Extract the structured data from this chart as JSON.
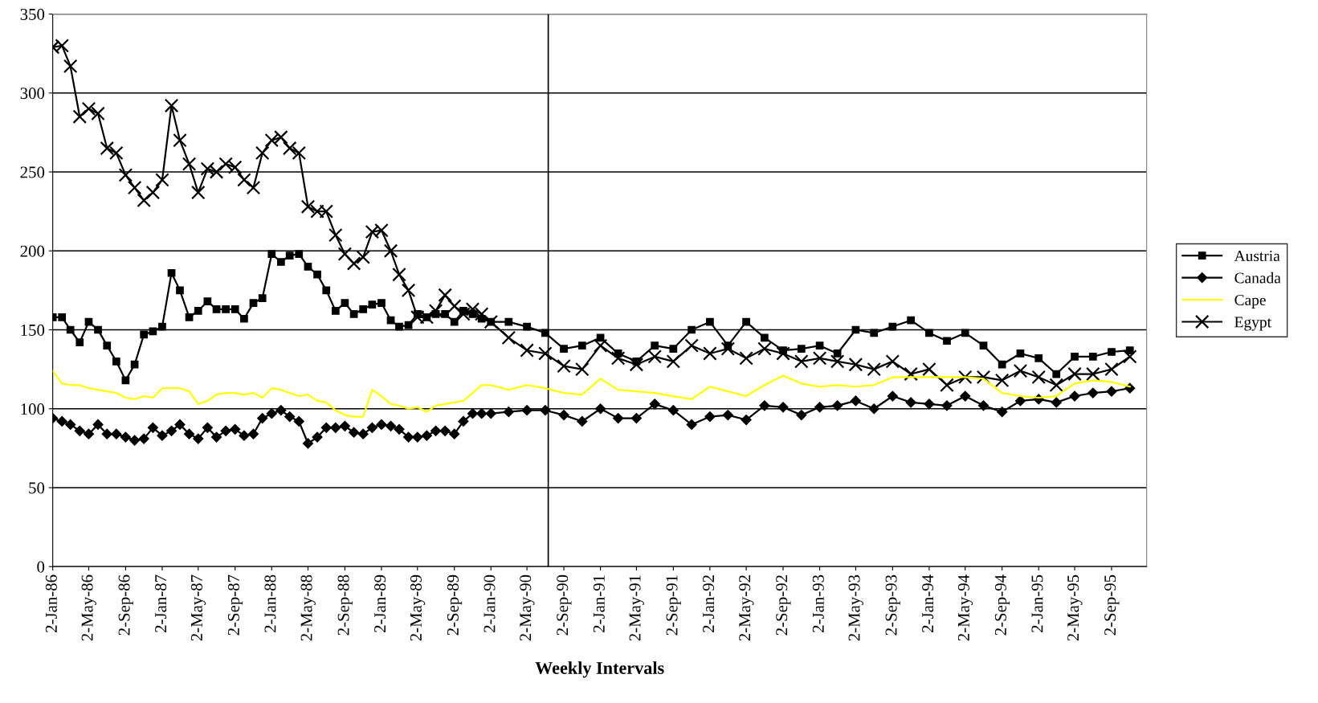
{
  "chart_data": {
    "type": "line",
    "xlabel": "Weekly Intervals",
    "x": [
      "1986-01-02",
      "1986-02-02",
      "1986-03-02",
      "1986-04-02",
      "1986-05-02",
      "1986-06-02",
      "1986-07-02",
      "1986-08-02",
      "1986-09-02",
      "1986-10-02",
      "1986-11-02",
      "1986-12-02",
      "1987-01-02",
      "1987-02-02",
      "1987-03-02",
      "1987-04-02",
      "1987-05-02",
      "1987-06-02",
      "1987-07-02",
      "1987-08-02",
      "1987-09-02",
      "1987-10-02",
      "1987-11-02",
      "1987-12-02",
      "1988-01-02",
      "1988-02-02",
      "1988-03-02",
      "1988-04-02",
      "1988-05-02",
      "1988-06-02",
      "1988-07-02",
      "1988-08-02",
      "1988-09-02",
      "1988-10-02",
      "1988-11-02",
      "1988-12-02",
      "1989-01-02",
      "1989-02-02",
      "1989-03-02",
      "1989-04-02",
      "1989-05-02",
      "1989-06-02",
      "1989-07-02",
      "1989-08-02",
      "1989-09-02",
      "1989-10-02",
      "1989-11-02",
      "1989-12-02",
      "1990-01-02",
      "1990-03-02",
      "1990-05-02",
      "1990-07-02",
      "1990-09-02",
      "1990-11-02",
      "1991-01-02",
      "1991-03-02",
      "1991-05-02",
      "1991-07-02",
      "1991-09-02",
      "1991-11-02",
      "1992-01-02",
      "1992-03-02",
      "1992-05-02",
      "1992-07-02",
      "1992-09-02",
      "1992-11-02",
      "1993-01-02",
      "1993-03-02",
      "1993-05-02",
      "1993-07-02",
      "1993-09-02",
      "1993-11-02",
      "1994-01-02",
      "1994-03-02",
      "1994-05-02",
      "1994-07-02",
      "1994-09-02",
      "1994-11-02",
      "1995-01-02",
      "1995-03-02",
      "1995-05-02",
      "1995-07-02",
      "1995-09-02",
      "1995-11-02"
    ],
    "series": [
      {
        "name": "Austria",
        "color": "#000000",
        "marker": "square",
        "values": [
          158,
          158,
          150,
          142,
          155,
          150,
          140,
          130,
          118,
          128,
          147,
          149,
          152,
          186,
          175,
          158,
          162,
          168,
          163,
          163,
          163,
          157,
          167,
          170,
          198,
          193,
          197,
          198,
          190,
          185,
          175,
          162,
          167,
          160,
          163,
          166,
          167,
          156,
          152,
          153,
          160,
          158,
          160,
          160,
          155,
          162,
          160,
          157,
          155,
          155,
          152,
          148,
          138,
          140,
          145,
          135,
          130,
          140,
          138,
          150,
          155,
          140,
          155,
          145,
          137,
          138,
          140,
          135,
          150,
          148,
          152,
          156,
          148,
          143,
          148,
          140,
          128,
          135,
          132,
          122,
          133,
          133,
          136,
          137
        ]
      },
      {
        "name": "Canada",
        "color": "#000000",
        "marker": "diamond",
        "values": [
          94,
          92,
          90,
          86,
          84,
          90,
          84,
          84,
          82,
          80,
          81,
          88,
          83,
          86,
          90,
          84,
          81,
          88,
          82,
          86,
          87,
          83,
          84,
          94,
          97,
          99,
          95,
          92,
          78,
          82,
          88,
          88,
          89,
          85,
          84,
          88,
          90,
          89,
          87,
          82,
          82,
          83,
          86,
          86,
          84,
          92,
          97,
          97,
          97,
          98,
          99,
          99,
          96,
          92,
          100,
          94,
          94,
          103,
          99,
          90,
          95,
          96,
          93,
          102,
          101,
          96,
          101,
          102,
          105,
          100,
          108,
          104,
          103,
          102,
          108,
          102,
          98,
          105,
          106,
          104,
          108,
          110,
          111,
          113
        ]
      },
      {
        "name": "Cape",
        "color": "#ffff00",
        "marker": "none",
        "values": [
          124,
          116,
          115,
          115,
          113,
          112,
          111,
          110,
          107,
          106,
          108,
          107,
          113,
          113,
          113,
          111,
          103,
          105,
          109,
          110,
          110,
          109,
          110,
          107,
          113,
          112,
          110,
          108,
          109,
          105,
          104,
          99,
          96,
          95,
          95,
          112,
          108,
          103,
          102,
          100,
          101,
          98,
          102,
          103,
          104,
          105,
          110,
          115,
          115,
          112,
          115,
          113,
          110,
          109,
          119,
          112,
          111,
          110,
          108,
          106,
          114,
          111,
          108,
          115,
          121,
          116,
          114,
          115,
          114,
          115,
          120,
          120,
          120,
          120,
          120,
          119,
          110,
          108,
          107,
          108,
          116,
          118,
          117,
          114
        ]
      },
      {
        "name": "Egypt",
        "color": "#000000",
        "marker": "cross",
        "values": [
          329,
          330,
          317,
          285,
          290,
          287,
          265,
          262,
          248,
          240,
          232,
          237,
          245,
          292,
          270,
          255,
          237,
          252,
          250,
          255,
          253,
          245,
          240,
          262,
          270,
          272,
          265,
          262,
          228,
          225,
          225,
          210,
          198,
          192,
          196,
          212,
          213,
          200,
          185,
          175,
          158,
          158,
          162,
          172,
          165,
          160,
          163,
          160,
          155,
          145,
          137,
          135,
          127,
          125,
          140,
          132,
          128,
          133,
          130,
          140,
          135,
          138,
          132,
          138,
          135,
          130,
          132,
          130,
          128,
          125,
          130,
          122,
          125,
          115,
          120,
          120,
          118,
          124,
          120,
          115,
          122,
          122,
          125,
          133
        ]
      }
    ],
    "xlim": [
      "1986-01-02",
      "1995-12-28"
    ],
    "xticks": [
      {
        "value": "1986-01-02",
        "label": "2-Jan-86"
      },
      {
        "value": "1986-05-02",
        "label": "2-May-86"
      },
      {
        "value": "1986-09-02",
        "label": "2-Sep-86"
      },
      {
        "value": "1987-01-02",
        "label": "2-Jan-87"
      },
      {
        "value": "1987-05-02",
        "label": "2-May-87"
      },
      {
        "value": "1987-09-02",
        "label": "2-Sep-87"
      },
      {
        "value": "1988-01-02",
        "label": "2-Jan-88"
      },
      {
        "value": "1988-05-02",
        "label": "2-May-88"
      },
      {
        "value": "1988-09-02",
        "label": "2-Sep-88"
      },
      {
        "value": "1989-01-02",
        "label": "2-Jan-89"
      },
      {
        "value": "1989-05-02",
        "label": "2-May-89"
      },
      {
        "value": "1989-09-02",
        "label": "2-Sep-89"
      },
      {
        "value": "1990-01-02",
        "label": "2-Jan-90"
      },
      {
        "value": "1990-05-02",
        "label": "2-May-90"
      },
      {
        "value": "1990-09-02",
        "label": "2-Sep-90"
      },
      {
        "value": "1991-01-02",
        "label": "2-Jan-91"
      },
      {
        "value": "1991-05-02",
        "label": "2-May-91"
      },
      {
        "value": "1991-09-02",
        "label": "2-Sep-91"
      },
      {
        "value": "1992-01-02",
        "label": "2-Jan-92"
      },
      {
        "value": "1992-05-02",
        "label": "2-May-92"
      },
      {
        "value": "1992-09-02",
        "label": "2-Sep-92"
      },
      {
        "value": "1993-01-02",
        "label": "2-Jan-93"
      },
      {
        "value": "1993-05-02",
        "label": "2-May-93"
      },
      {
        "value": "1993-09-02",
        "label": "2-Sep-93"
      },
      {
        "value": "1994-01-02",
        "label": "2-Jan-94"
      },
      {
        "value": "1994-05-02",
        "label": "2-May-94"
      },
      {
        "value": "1994-09-02",
        "label": "2-Sep-94"
      },
      {
        "value": "1995-01-02",
        "label": "2-Jan-95"
      },
      {
        "value": "1995-05-02",
        "label": "2-May-95"
      },
      {
        "value": "1995-09-02",
        "label": "2-Sep-95"
      }
    ],
    "ylim": [
      0,
      350
    ],
    "yticks": [
      0,
      50,
      100,
      150,
      200,
      250,
      300,
      350
    ],
    "ref_lines": [
      {
        "axis": "x",
        "value": "1990-07-12",
        "color": "#000000"
      }
    ],
    "grid": "y",
    "legend": "right",
    "line_style": "solid"
  }
}
